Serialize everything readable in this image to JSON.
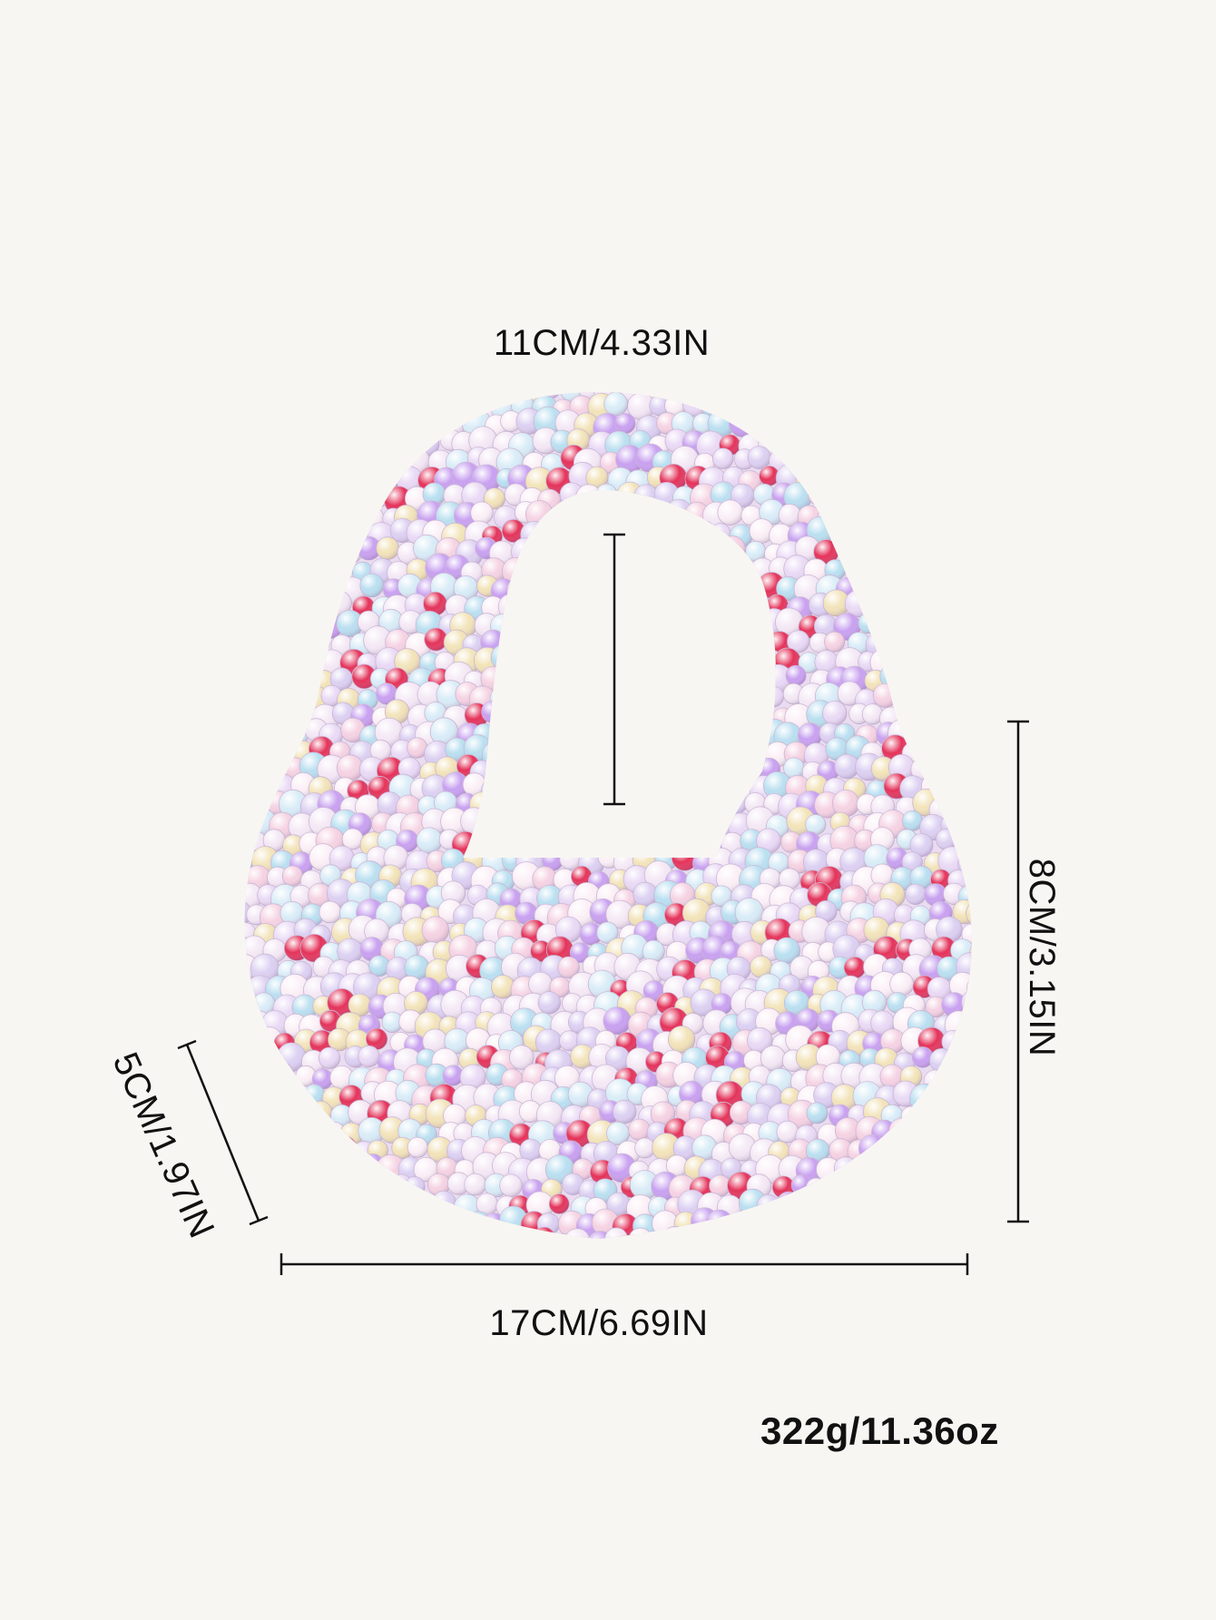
{
  "dimensions": {
    "handle": "11CM/4.33IN",
    "width": "17CM/6.69IN",
    "height": "8CM/3.15IN",
    "depth": "5CM/1.97IN"
  },
  "weight": "322g/11.36oz",
  "product": {
    "icon": "beaded-handbag-image",
    "bead_colors": [
      "#f4e8f5",
      "#e9d9f5",
      "#dcd0f2",
      "#f5d2e2",
      "#e4335a",
      "#b9dff0",
      "#f2e3b8",
      "#c8a0f0",
      "#fbeff6",
      "#d8ecf7"
    ]
  }
}
